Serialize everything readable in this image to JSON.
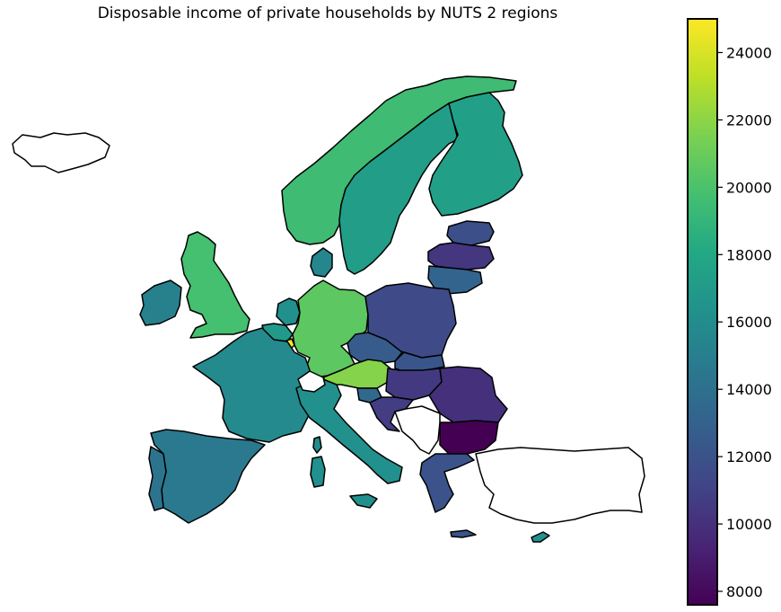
{
  "title": "Disposable income of private households by NUTS 2 regions",
  "colorbar": {
    "min": 7600,
    "max": 25000,
    "ticks": [
      8000,
      10000,
      12000,
      14000,
      16000,
      18000,
      20000,
      22000,
      24000
    ],
    "tick_labels": [
      "8000",
      "10000",
      "12000",
      "14000",
      "16000",
      "18000",
      "20000",
      "22000",
      "24000"
    ],
    "colormap": "viridis"
  },
  "regions": [
    {
      "name": "Iceland",
      "value": null
    },
    {
      "name": "Norway",
      "value": 19500
    },
    {
      "name": "Sweden",
      "value": 17200
    },
    {
      "name": "Finland",
      "value": 17400
    },
    {
      "name": "Estonia",
      "value": 11800
    },
    {
      "name": "Latvia",
      "value": 10300
    },
    {
      "name": "Lithuania",
      "value": 13200
    },
    {
      "name": "Ireland",
      "value": 15200
    },
    {
      "name": "United Kingdom",
      "value": 19800
    },
    {
      "name": "Denmark",
      "value": 15500
    },
    {
      "name": "Netherlands",
      "value": 16200
    },
    {
      "name": "Belgium",
      "value": 17000
    },
    {
      "name": "Luxembourg",
      "value": 25000
    },
    {
      "name": "Germany",
      "value": 20600
    },
    {
      "name": "Poland",
      "value": 11500
    },
    {
      "name": "Czechia",
      "value": 12600
    },
    {
      "name": "Slovakia",
      "value": 12200
    },
    {
      "name": "Austria",
      "value": 21800
    },
    {
      "name": "Hungary",
      "value": 10500
    },
    {
      "name": "Romania",
      "value": 10000
    },
    {
      "name": "Bulgaria",
      "value": 7600
    },
    {
      "name": "France",
      "value": 15800
    },
    {
      "name": "Spain",
      "value": 14600
    },
    {
      "name": "Portugal",
      "value": 14300
    },
    {
      "name": "Italy",
      "value": 16200
    },
    {
      "name": "Slovenia",
      "value": 13500
    },
    {
      "name": "Croatia",
      "value": 10700
    },
    {
      "name": "Western Balkans",
      "value": null
    },
    {
      "name": "Greece",
      "value": 12000
    },
    {
      "name": "Cyprus",
      "value": 16300
    },
    {
      "name": "Malta",
      "value": 16600
    },
    {
      "name": "Turkey",
      "value": null
    },
    {
      "name": "Switzerland",
      "value": null
    }
  ]
}
